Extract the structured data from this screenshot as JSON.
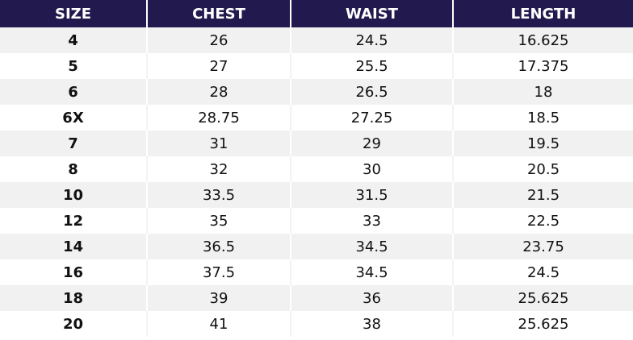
{
  "table": {
    "headers": [
      "SIZE",
      "CHEST",
      "WAIST",
      "LENGTH"
    ],
    "rows": [
      [
        "4",
        "26",
        "24.5",
        "16.625"
      ],
      [
        "5",
        "27",
        "25.5",
        "17.375"
      ],
      [
        "6",
        "28",
        "26.5",
        "18"
      ],
      [
        "6X",
        "28.75",
        "27.25",
        "18.5"
      ],
      [
        "7",
        "31",
        "29",
        "19.5"
      ],
      [
        "8",
        "32",
        "30",
        "20.5"
      ],
      [
        "10",
        "33.5",
        "31.5",
        "21.5"
      ],
      [
        "12",
        "35",
        "33",
        "22.5"
      ],
      [
        "14",
        "36.5",
        "34.5",
        "23.75"
      ],
      [
        "16",
        "37.5",
        "34.5",
        "24.5"
      ],
      [
        "18",
        "39",
        "36",
        "25.625"
      ],
      [
        "20",
        "41",
        "38",
        "25.625"
      ]
    ]
  }
}
